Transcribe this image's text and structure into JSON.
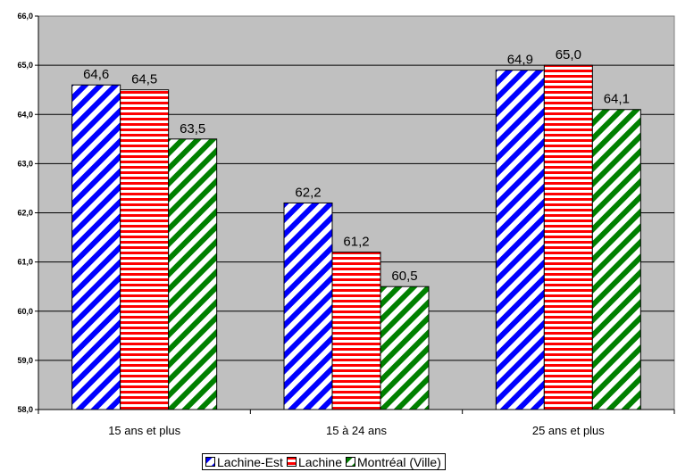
{
  "chart_data": {
    "type": "bar",
    "categories": [
      "15 ans et plus",
      "15 à 24 ans",
      "25 ans et plus"
    ],
    "series": [
      {
        "name": "Lachine-Est",
        "values": [
          64.6,
          62.2,
          64.9
        ],
        "labels": [
          "64,6",
          "62,2",
          "64,9"
        ],
        "color": "#0000ff",
        "pattern": "diagonal-stripes"
      },
      {
        "name": "Lachine",
        "values": [
          64.5,
          61.2,
          65.0
        ],
        "labels": [
          "64,5",
          "61,2",
          "65,0"
        ],
        "color": "#ff0000",
        "pattern": "horizontal-stripes"
      },
      {
        "name": "Montréal (Ville)",
        "values": [
          63.5,
          60.5,
          64.1
        ],
        "labels": [
          "63,5",
          "60,5",
          "64,1"
        ],
        "color": "#008000",
        "pattern": "diagonal-stripes"
      }
    ],
    "ylim": [
      58,
      66
    ],
    "yticks": [
      "58,0",
      "59,0",
      "60,0",
      "61,0",
      "62,0",
      "63,0",
      "64,0",
      "65,0",
      "66,0"
    ],
    "grid": true,
    "plot_background": "#c0c0c0",
    "legend_position": "bottom"
  }
}
